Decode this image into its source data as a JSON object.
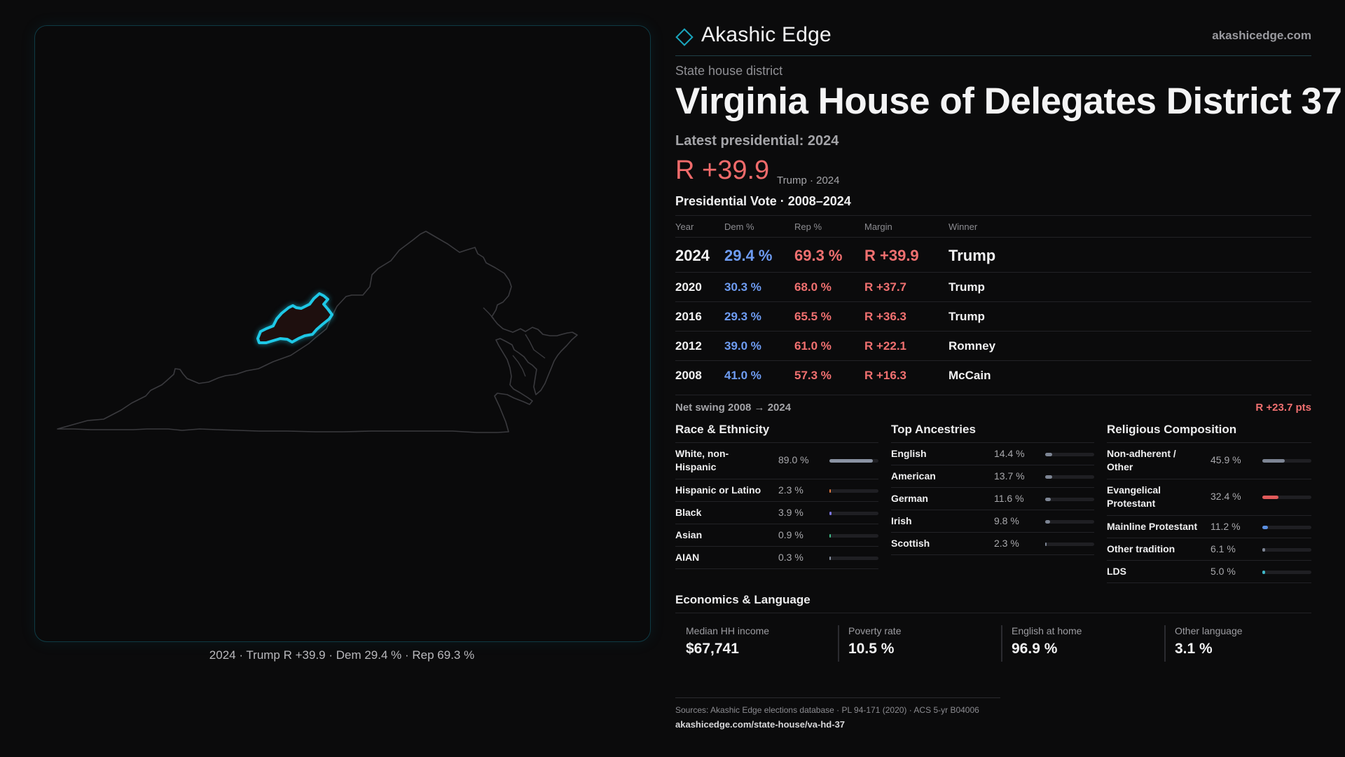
{
  "map": {
    "caption": "2024 · Trump R +39.9 · Dem 29.4 % · Rep 69.3 %",
    "district_color": "#1ec8e6"
  },
  "brand": {
    "name": "Akashic Edge",
    "url": "akashicedge.com"
  },
  "district": {
    "type": "State house district",
    "title": "Virginia House of Delegates District 37",
    "latest_label": "Latest presidential: 2024",
    "margin": "R +39.9",
    "margin_note": "Trump · 2024"
  },
  "presidential": {
    "title": "Presidential Vote · 2008–2024",
    "headers": {
      "year": "Year",
      "dem": "Dem %",
      "rep": "Rep %",
      "margin": "Margin",
      "winner": "Winner"
    },
    "rows": [
      {
        "year": "2024",
        "dem": "29.4 %",
        "rep": "69.3 %",
        "margin": "R +39.9",
        "winner": "Trump"
      },
      {
        "year": "2020",
        "dem": "30.3 %",
        "rep": "68.0 %",
        "margin": "R +37.7",
        "winner": "Trump"
      },
      {
        "year": "2016",
        "dem": "29.3 %",
        "rep": "65.5 %",
        "margin": "R +36.3",
        "winner": "Trump"
      },
      {
        "year": "2012",
        "dem": "39.0 %",
        "rep": "61.0 %",
        "margin": "R +22.1",
        "winner": "Romney"
      },
      {
        "year": "2008",
        "dem": "41.0 %",
        "rep": "57.3 %",
        "margin": "R +16.3",
        "winner": "McCain"
      }
    ],
    "swing_label": "Net swing 2008 → 2024",
    "swing_value": "R +23.7 pts"
  },
  "race": {
    "title": "Race & Ethnicity",
    "rows": [
      {
        "label": "White, non-Hispanic",
        "value": "89.0 %",
        "share": 0.89,
        "color": "#8a93a3"
      },
      {
        "label": "Hispanic or Latino",
        "value": "2.3 %",
        "share": 0.023,
        "color": "#e07a3f"
      },
      {
        "label": "Black",
        "value": "3.9 %",
        "share": 0.039,
        "color": "#7b74e0"
      },
      {
        "label": "Asian",
        "value": "0.9 %",
        "share": 0.009,
        "color": "#3fbf8a"
      },
      {
        "label": "AIAN",
        "value": "0.3 %",
        "share": 0.003,
        "color": "#8a93a3"
      }
    ]
  },
  "ancestry": {
    "title": "Top Ancestries",
    "rows": [
      {
        "label": "English",
        "value": "14.4 %",
        "share": 0.144,
        "color": "#7d8594"
      },
      {
        "label": "American",
        "value": "13.7 %",
        "share": 0.137,
        "color": "#7d8594"
      },
      {
        "label": "German",
        "value": "11.6 %",
        "share": 0.116,
        "color": "#7d8594"
      },
      {
        "label": "Irish",
        "value": "9.8 %",
        "share": 0.098,
        "color": "#7d8594"
      },
      {
        "label": "Scottish",
        "value": "2.3 %",
        "share": 0.023,
        "color": "#7d8594"
      }
    ]
  },
  "religion": {
    "title": "Religious Composition",
    "rows": [
      {
        "label": "Non-adherent / Other",
        "value": "45.9 %",
        "share": 0.459,
        "color": "#7d8594"
      },
      {
        "label": "Evangelical Protestant",
        "value": "32.4 %",
        "share": 0.324,
        "color": "#e05a5a"
      },
      {
        "label": "Mainline Protestant",
        "value": "11.2 %",
        "share": 0.112,
        "color": "#5b8fe0"
      },
      {
        "label": "Other tradition",
        "value": "6.1 %",
        "share": 0.061,
        "color": "#7d8594"
      },
      {
        "label": "LDS",
        "value": "5.0 %",
        "share": 0.05,
        "color": "#3fb8c8"
      }
    ]
  },
  "economics": {
    "title": "Economics & Language",
    "items": [
      {
        "label": "Median HH income",
        "value": "$67,741"
      },
      {
        "label": "Poverty rate",
        "value": "10.5 %"
      },
      {
        "label": "English at home",
        "value": "96.9 %"
      },
      {
        "label": "Other language",
        "value": "3.1 %"
      }
    ]
  },
  "sources": {
    "text": "Sources: Akashic Edge elections database · PL 94-171 (2020) · ACS 5-yr B04006",
    "url": "akashicedge.com/state-house/va-hd-37"
  }
}
